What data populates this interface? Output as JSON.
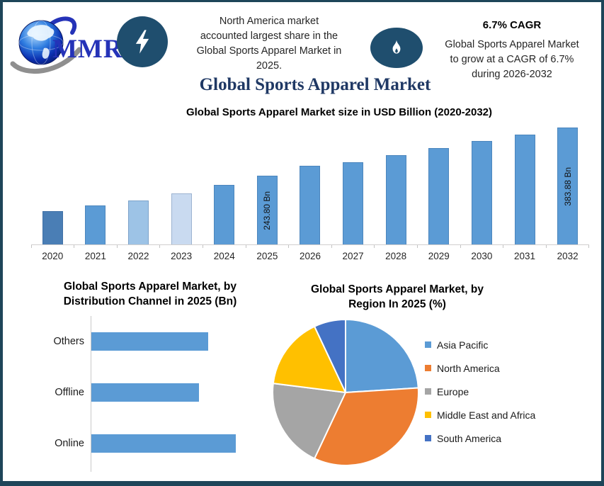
{
  "brand": {
    "logo_text": "MMR"
  },
  "header": {
    "left_note": {
      "lines": [
        "North America market",
        "accounted largest share in the",
        "Global Sports Apparel Market in",
        "2025."
      ]
    },
    "right_note": {
      "cagr": "6.7% CAGR",
      "lines": [
        "Global Sports Apparel Market",
        "to grow at a CAGR of 6.7%",
        "during 2026-2032"
      ]
    }
  },
  "main_title": "Global Sports Apparel Market",
  "colors": {
    "frame_border": "#1E4559",
    "badge": "#1F4E6E",
    "title_navy": "#1F3864",
    "logo_blue": "#2533B8",
    "primary_bar_blue": "#5B9BD5"
  },
  "chart_data": [
    {
      "id": "market-size",
      "type": "bar",
      "title": "Global Sports Apparel Market size in USD Billion (2020-2032)",
      "categories": [
        "2020",
        "2021",
        "2022",
        "2023",
        "2024",
        "2025",
        "2026",
        "2027",
        "2028",
        "2029",
        "2030",
        "2031",
        "2032"
      ],
      "values": [
        143,
        158,
        174,
        194,
        218,
        243.8,
        273,
        283,
        303,
        324,
        344,
        364,
        383.88
      ],
      "bar_labels": [
        "",
        "",
        "",
        "",
        "",
        "243.80 Bn",
        "",
        "",
        "",
        "",
        "",
        "",
        "383.88 Bn"
      ],
      "bar_colors": [
        "#4A7EB5",
        "#5B9BD5",
        "#9DC3E6",
        "#C9DAF0",
        "#5B9BD5",
        "#5B9BD5",
        "#5B9BD5",
        "#5B9BD5",
        "#5B9BD5",
        "#5B9BD5",
        "#5B9BD5",
        "#5B9BD5",
        "#5B9BD5"
      ],
      "ylabel": "USD Billion",
      "ylim": [
        46,
        392
      ],
      "grid": false,
      "legend": false
    },
    {
      "id": "distribution-channel",
      "type": "bar",
      "orientation": "horizontal",
      "title_lines": [
        "Global Sports Apparel Market, by",
        "Distribution Channel in 2025 (Bn)"
      ],
      "title": "Global Sports Apparel Market, by Distribution Channel in 2025 (Bn)",
      "categories": [
        "Others",
        "Offline",
        "Online"
      ],
      "values": [
        77,
        71,
        95
      ],
      "xlim": [
        0,
        112
      ],
      "bar_color": "#5B9BD5",
      "grid": false,
      "legend": false
    },
    {
      "id": "region-share",
      "type": "pie",
      "title_lines": [
        "Global Sports Apparel Market, by",
        "Region In 2025 (%)"
      ],
      "title": "Global Sports Apparel Market, by Region In 2025 (%)",
      "slices": [
        {
          "label": "Asia Pacific",
          "value": 24,
          "color": "#5B9BD5"
        },
        {
          "label": "North America",
          "value": 33,
          "color": "#ED7D31"
        },
        {
          "label": "Europe",
          "value": 20,
          "color": "#A5A5A5"
        },
        {
          "label": "Middle East and Africa",
          "value": 16,
          "color": "#FFC000"
        },
        {
          "label": "South America",
          "value": 7,
          "color": "#4472C4"
        }
      ],
      "start_angle_deg": 0,
      "direction": "clockwise",
      "legend_position": "right"
    }
  ]
}
